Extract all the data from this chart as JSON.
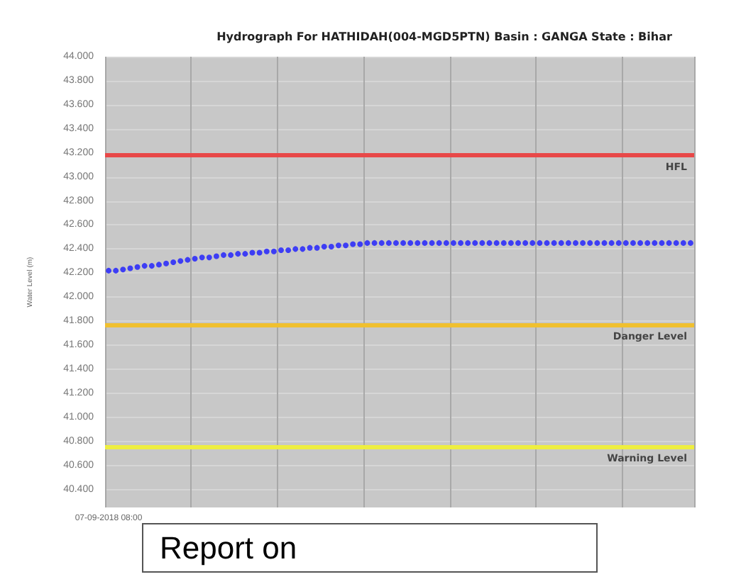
{
  "chart_data": {
    "type": "scatter",
    "title": "Hydrograph For HATHIDAH(004-MGD5PTN) Basin : GANGA State : Bihar",
    "ylabel": "Water Level (m)",
    "categories": [
      "07-09-2018 08:00",
      null,
      null,
      null,
      null,
      null,
      null,
      null,
      null,
      null,
      null,
      null,
      null,
      null,
      null,
      null,
      null,
      null,
      null,
      null,
      null,
      null,
      null,
      null,
      null,
      null,
      null,
      null,
      null,
      null,
      null,
      null,
      null,
      null,
      null,
      null,
      null,
      null,
      null,
      null,
      null,
      null,
      null,
      null,
      null,
      null,
      null,
      null,
      null,
      null,
      null,
      null,
      null,
      null,
      null,
      null,
      null,
      null,
      null,
      null,
      null,
      null,
      null,
      null,
      null,
      null,
      null,
      null,
      null,
      null,
      null,
      null,
      null,
      null,
      null,
      null,
      null,
      null,
      null,
      null,
      null,
      null
    ],
    "series": [
      {
        "color": "#1a1aff",
        "values": [
          42.22,
          42.22,
          42.23,
          42.24,
          42.25,
          42.26,
          42.26,
          42.27,
          42.28,
          42.29,
          42.3,
          42.31,
          42.32,
          42.33,
          42.33,
          42.34,
          42.35,
          42.35,
          42.36,
          42.36,
          42.37,
          42.37,
          42.38,
          42.38,
          42.39,
          42.39,
          42.4,
          42.4,
          42.41,
          42.41,
          42.42,
          42.42,
          42.43,
          42.43,
          42.44,
          42.44,
          42.45,
          42.45,
          42.45,
          42.45,
          42.45,
          42.45,
          42.45,
          42.45,
          42.45,
          42.45,
          42.45,
          42.45,
          42.45,
          42.45,
          42.45,
          42.45,
          42.45,
          42.45,
          42.45,
          42.45,
          42.45,
          42.45,
          42.45,
          42.45,
          42.45,
          42.45,
          42.45,
          42.45,
          42.45,
          42.45,
          42.45,
          42.45,
          42.45,
          42.45,
          42.45,
          42.45,
          42.45,
          42.45,
          42.45,
          42.45,
          42.45,
          42.45,
          42.45,
          42.45,
          42.45,
          42.45
        ]
      }
    ],
    "ylim": [
      40.25,
      44.0
    ],
    "yticks": [
      {
        "value": 40.4,
        "label": "40.400"
      },
      {
        "value": 40.6,
        "label": "40.600"
      },
      {
        "value": 40.8,
        "label": "40.800"
      },
      {
        "value": 41.0,
        "label": "41.000"
      },
      {
        "value": 41.2,
        "label": "41.200"
      },
      {
        "value": 41.4,
        "label": "41.400"
      },
      {
        "value": 41.6,
        "label": "41.600"
      },
      {
        "value": 41.8,
        "label": "41.800"
      },
      {
        "value": 42.0,
        "label": "42.000"
      },
      {
        "value": 42.2,
        "label": "42.200"
      },
      {
        "value": 42.4,
        "label": "42.400"
      },
      {
        "value": 42.6,
        "label": "42.600"
      },
      {
        "value": 42.8,
        "label": "42.800"
      },
      {
        "value": 43.0,
        "label": "43.000"
      },
      {
        "value": 43.2,
        "label": "43.200"
      },
      {
        "value": 43.4,
        "label": "43.400"
      },
      {
        "value": 43.6,
        "label": "43.600"
      },
      {
        "value": 43.8,
        "label": "43.800"
      },
      {
        "value": 44.0,
        "label": "44.000"
      }
    ],
    "ref_lines": [
      {
        "axis": "y",
        "value": 43.18,
        "label": "HFL",
        "color": "#e84848"
      },
      {
        "axis": "y",
        "value": 41.77,
        "label": "Danger Level",
        "color": "#f0c030"
      },
      {
        "axis": "y",
        "value": 40.76,
        "label": "Warning Level",
        "color": "#eeee40"
      }
    ],
    "annotations": [
      "Report on"
    ],
    "grid": true,
    "marker": "circle"
  }
}
